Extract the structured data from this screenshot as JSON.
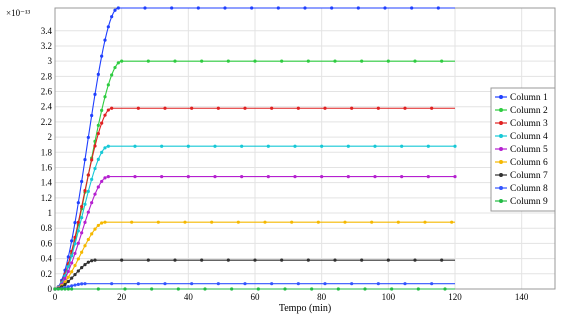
{
  "chart_data": {
    "type": "line",
    "title": "",
    "xlabel": "Tempo (min)",
    "ylabel": "",
    "y_multiplier_label": "×10⁻¹³",
    "xlim": [
      0,
      150
    ],
    "ylim": [
      0,
      3.7
    ],
    "x_ticks": [
      0,
      20,
      40,
      60,
      80,
      100,
      120,
      140
    ],
    "x_tick_labels": [
      "0",
      "20",
      "40",
      "60",
      "80",
      "100",
      "120",
      "140"
    ],
    "y_ticks": [
      0,
      0.2,
      0.4,
      0.6,
      0.8,
      1,
      1.2,
      1.4,
      1.6,
      1.8,
      2,
      2.2,
      2.4,
      2.6,
      2.8,
      3,
      3.2,
      3.4
    ],
    "y_tick_labels": [
      "0",
      "0.2",
      "0.4",
      "0.6",
      "0.8",
      "1",
      "1.2",
      "1.4",
      "1.6",
      "1.8",
      "2",
      "2.2",
      "2.4",
      "2.6",
      "2.8",
      "3",
      "3.2",
      "3.4"
    ],
    "grid": true,
    "legend_position": "right",
    "series": [
      {
        "name": "Column 1",
        "color": "#1f3fff",
        "plateau": 3.7,
        "t_rise": 19,
        "x": [
          0,
          2,
          4,
          6,
          8,
          10,
          12,
          14,
          16,
          18,
          20,
          120
        ],
        "y": [
          0,
          0.05,
          0.35,
          0.9,
          1.6,
          2.35,
          2.95,
          3.35,
          3.6,
          3.68,
          3.7,
          3.7
        ]
      },
      {
        "name": "Column 2",
        "color": "#2ecc40",
        "plateau": 3.0,
        "t_rise": 20,
        "x": [
          0,
          2,
          4,
          6,
          8,
          10,
          12,
          14,
          16,
          18,
          20,
          120
        ],
        "y": [
          0,
          0.04,
          0.25,
          0.65,
          1.15,
          1.7,
          2.25,
          2.65,
          2.88,
          2.97,
          3.0,
          3.0
        ]
      },
      {
        "name": "Column 3",
        "color": "#e02020",
        "plateau": 2.38,
        "t_rise": 17,
        "x": [
          0,
          2,
          4,
          6,
          8,
          10,
          12,
          14,
          16,
          18,
          120
        ],
        "y": [
          0,
          0.03,
          0.2,
          0.55,
          1.0,
          1.5,
          1.95,
          2.25,
          2.35,
          2.38,
          2.38
        ]
      },
      {
        "name": "Column 4",
        "color": "#16c8d6",
        "plateau": 1.88,
        "t_rise": 16,
        "x": [
          0,
          2,
          4,
          6,
          8,
          10,
          12,
          14,
          16,
          120
        ],
        "y": [
          0,
          0.03,
          0.18,
          0.45,
          0.85,
          1.25,
          1.6,
          1.82,
          1.88,
          1.88
        ]
      },
      {
        "name": "Column 5",
        "color": "#b520d0",
        "plateau": 1.48,
        "t_rise": 16,
        "x": [
          0,
          2,
          4,
          6,
          8,
          10,
          12,
          14,
          16,
          120
        ],
        "y": [
          0,
          0.02,
          0.14,
          0.38,
          0.68,
          1.0,
          1.28,
          1.44,
          1.48,
          1.48
        ]
      },
      {
        "name": "Column 6",
        "color": "#f5b800",
        "plateau": 0.88,
        "t_rise": 15,
        "x": [
          0,
          2,
          4,
          6,
          8,
          10,
          12,
          14,
          16,
          120
        ],
        "y": [
          0,
          0.02,
          0.1,
          0.25,
          0.45,
          0.65,
          0.8,
          0.86,
          0.88,
          0.88
        ]
      },
      {
        "name": "Column 7",
        "color": "#303030",
        "plateau": 0.38,
        "t_rise": 12,
        "x": [
          0,
          2,
          4,
          6,
          8,
          10,
          12,
          120
        ],
        "y": [
          0,
          0.02,
          0.07,
          0.16,
          0.28,
          0.36,
          0.38,
          0.38
        ]
      },
      {
        "name": "Column 8",
        "color": "#3355ff",
        "plateau": 0.07,
        "t_rise": 9,
        "x": [
          0,
          2,
          4,
          6,
          8,
          10,
          120
        ],
        "y": [
          0,
          0.01,
          0.03,
          0.055,
          0.068,
          0.07,
          0.07
        ]
      },
      {
        "name": "Column 9",
        "color": "#22bb44",
        "plateau": 0.0,
        "t_rise": 5,
        "x": [
          0,
          120
        ],
        "y": [
          0,
          0
        ]
      }
    ]
  }
}
